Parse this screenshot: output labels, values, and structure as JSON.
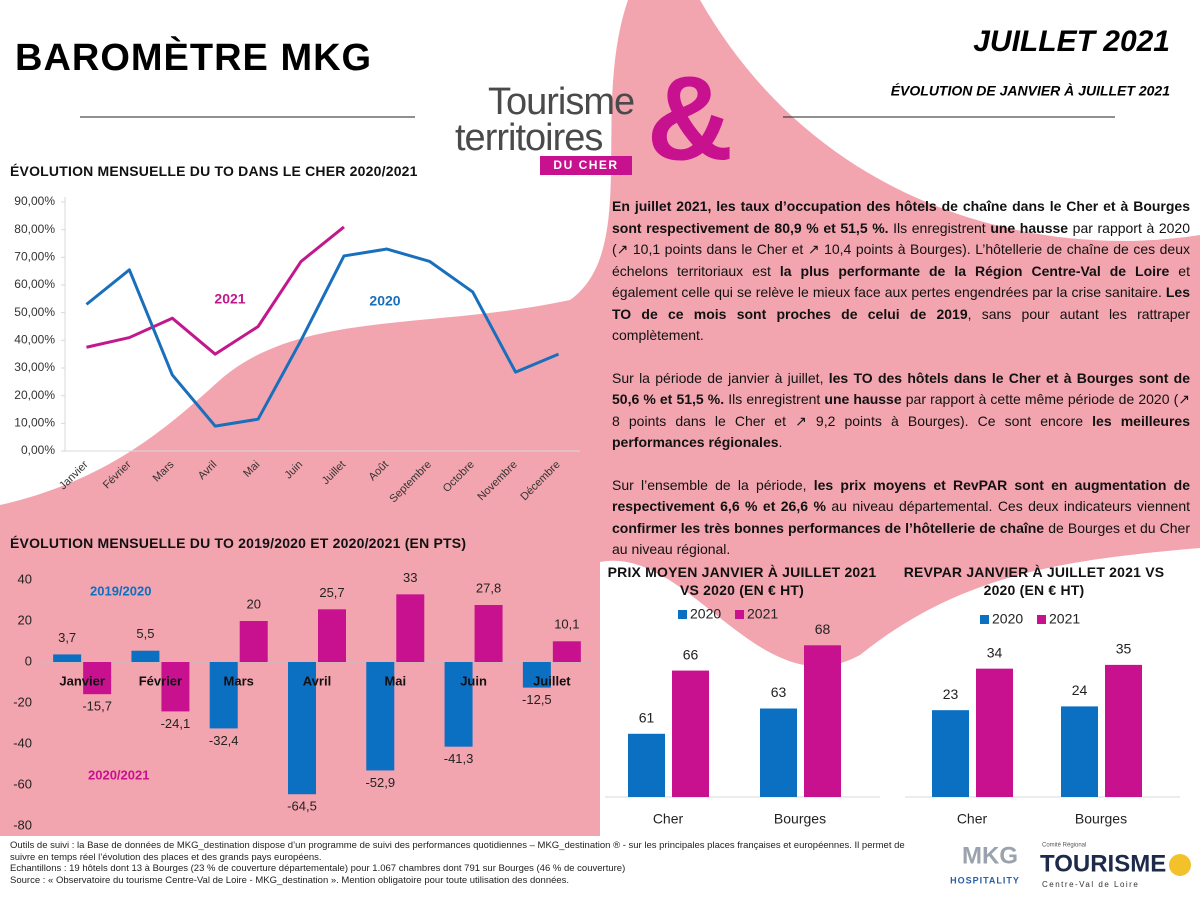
{
  "header": {
    "title": "BAROMÈTRE MKG",
    "date": "JUILLET 2021",
    "subtitle": "ÉVOLUTION DE JANVIER À JUILLET 2021"
  },
  "logo": {
    "line1": "Tourisme",
    "line2": "territoires",
    "tag": "DU CHER",
    "mark": "&"
  },
  "chart_data": [
    {
      "type": "line",
      "title": "ÉVOLUTION MENSUELLE DU TO DANS LE CHER 2020/2021",
      "categories": [
        "Janvier",
        "Février",
        "Mars",
        "Avril",
        "Mai",
        "Juin",
        "Juillet",
        "Août",
        "Septembre",
        "Octobre",
        "Novembre",
        "Décembre"
      ],
      "series": [
        {
          "name": "2021",
          "color": "#c2188e",
          "values": [
            37.5,
            41,
            48,
            35,
            45,
            68.5,
            81,
            null,
            null,
            null,
            null,
            null
          ]
        },
        {
          "name": "2020",
          "color": "#1a6fbd",
          "values": [
            53,
            65.5,
            27.5,
            9,
            11.5,
            40,
            70.5,
            73,
            68.5,
            57.5,
            28.5,
            35
          ]
        }
      ],
      "ylim": [
        0,
        90
      ],
      "yticks": [
        {
          "value": 0,
          "label": "0,00%"
        },
        {
          "value": 10,
          "label": "10,00%"
        },
        {
          "value": 20,
          "label": "20,00%"
        },
        {
          "value": 30,
          "label": "30,00%"
        },
        {
          "value": 40,
          "label": "40,00%"
        },
        {
          "value": 50,
          "label": "50,00%"
        },
        {
          "value": 60,
          "label": "60,00%"
        },
        {
          "value": 70,
          "label": "70,00%"
        },
        {
          "value": 80,
          "label": "80,00%"
        },
        {
          "value": 90,
          "label": "90,00%"
        }
      ],
      "grid": false
    },
    {
      "type": "bar",
      "title": "ÉVOLUTION MENSUELLE DU TO 2019/2020 ET 2020/2021 (EN PTS)",
      "categories": [
        "Janvier",
        "Février",
        "Mars",
        "Avril",
        "Mai",
        "Juin",
        "Juillet"
      ],
      "series": [
        {
          "name": "2019/2020",
          "color": "#0b6fc2",
          "values": [
            3.7,
            5.5,
            -32.4,
            -64.5,
            -52.9,
            -41.3,
            -12.5
          ],
          "value_labels": [
            "3,7",
            "5,5",
            "-32,4",
            "-64,5",
            "-52,9",
            "-41,3",
            "-12,5"
          ]
        },
        {
          "name": "2020/2021",
          "color": "#c8118f",
          "values": [
            -15.7,
            -24.1,
            20,
            25.7,
            33,
            27.8,
            10.1
          ],
          "value_labels": [
            "-15,7",
            "-24,1",
            "20",
            "25,7",
            "33",
            "27,8",
            "10,1"
          ]
        }
      ],
      "ylim": [
        -80,
        40
      ],
      "yticks": [
        -80,
        -60,
        -40,
        -20,
        0,
        20,
        40
      ],
      "grid": false
    },
    {
      "type": "bar",
      "title": "PRIX MOYEN JANVIER À JUILLET 2021 VS 2020 (EN € HT)",
      "categories": [
        "Cher",
        "Bourges"
      ],
      "series": [
        {
          "name": "2020",
          "color": "#0b6fc2",
          "values": [
            61,
            63
          ]
        },
        {
          "name": "2021",
          "color": "#c8118f",
          "values": [
            66,
            68
          ]
        }
      ],
      "ylim": [
        56,
        70
      ],
      "legend": "top"
    },
    {
      "type": "bar",
      "title": "REVPAR JANVIER À JUILLET 2021 VS 2020 (EN € HT)",
      "categories": [
        "Cher",
        "Bourges"
      ],
      "series": [
        {
          "name": "2020",
          "color": "#0b6fc2",
          "values": [
            23,
            24
          ]
        },
        {
          "name": "2021",
          "color": "#c8118f",
          "values": [
            34,
            35
          ]
        }
      ],
      "ylim": [
        0,
        40
      ],
      "legend": "top"
    }
  ],
  "paragraphs": [
    [
      {
        "text": "En juillet 2021, les taux d’occupation des hôtels de chaîne dans le Cher et à Bourges sont respectivement de 80,9 % et 51,5 %.",
        "bold": true
      },
      {
        "text": " Ils enregistrent ",
        "bold": false
      },
      {
        "text": "une hausse",
        "bold": true
      },
      {
        "text": " par rapport à 2020 (↗ 10,1 points dans le Cher et ↗ 10,4 points à Bourges). L’hôtellerie de chaîne de ces deux échelons territoriaux est ",
        "bold": false
      },
      {
        "text": "la plus performante de la Région Centre-Val de Loire",
        "bold": true
      },
      {
        "text": " et également celle qui se relève le mieux face aux pertes engendrées par la crise sanitaire. ",
        "bold": false
      },
      {
        "text": "Les TO de ce mois sont proches de celui de 2019",
        "bold": true
      },
      {
        "text": ", sans pour autant les rattraper complètement.",
        "bold": false
      }
    ],
    [
      {
        "text": "Sur la période de janvier à juillet, ",
        "bold": false
      },
      {
        "text": "les TO des hôtels dans le Cher et à Bourges sont de 50,6 % et 51,5 %.",
        "bold": true
      },
      {
        "text": " Ils enregistrent ",
        "bold": false
      },
      {
        "text": "une hausse",
        "bold": true
      },
      {
        "text": " par rapport à cette même période de 2020 (↗ 8 points dans le Cher et ↗ 9,2 points à Bourges). Ce sont encore ",
        "bold": false
      },
      {
        "text": "les meilleures performances régionales",
        "bold": true
      },
      {
        "text": ".",
        "bold": false
      }
    ],
    [
      {
        "text": "Sur l’ensemble de la période, ",
        "bold": false
      },
      {
        "text": "les prix moyens et RevPAR sont en augmentation de respectivement 6,6 % et 26,6 %",
        "bold": true
      },
      {
        "text": " au niveau départemental. Ces deux indicateurs viennent ",
        "bold": false
      },
      {
        "text": "confirmer les très bonnes performances de l’hôtellerie de chaîne",
        "bold": true
      },
      {
        "text": " de Bourges et du Cher au niveau régional.",
        "bold": false
      }
    ]
  ],
  "footer": {
    "lines": [
      "Outils de suivi : la Base de données de MKG_destination dispose d’un programme de suivi des performances quotidiennes – MKG_destination ® - sur les principales places françaises et européennes. Il permet de suivre en temps réel l’évolution des places et des grands pays européens.",
      "Echantillons : 19 hôtels dont 13 à Bourges (23 % de couverture départementale) pour 1.067 chambres dont 791 sur Bourges (46 % de couverture)",
      "Source : « Observatoire du tourisme Centre-Val de Loire - MKG_destination ». Mention obligatoire pour toute utilisation des données."
    ]
  },
  "partners": {
    "mkg": "MKG",
    "mkg_sub": "HOSPITALITY",
    "crt_top": "Comité Régional",
    "crt": "TOURISME",
    "crt_sub": "Centre-Val de Loire"
  }
}
